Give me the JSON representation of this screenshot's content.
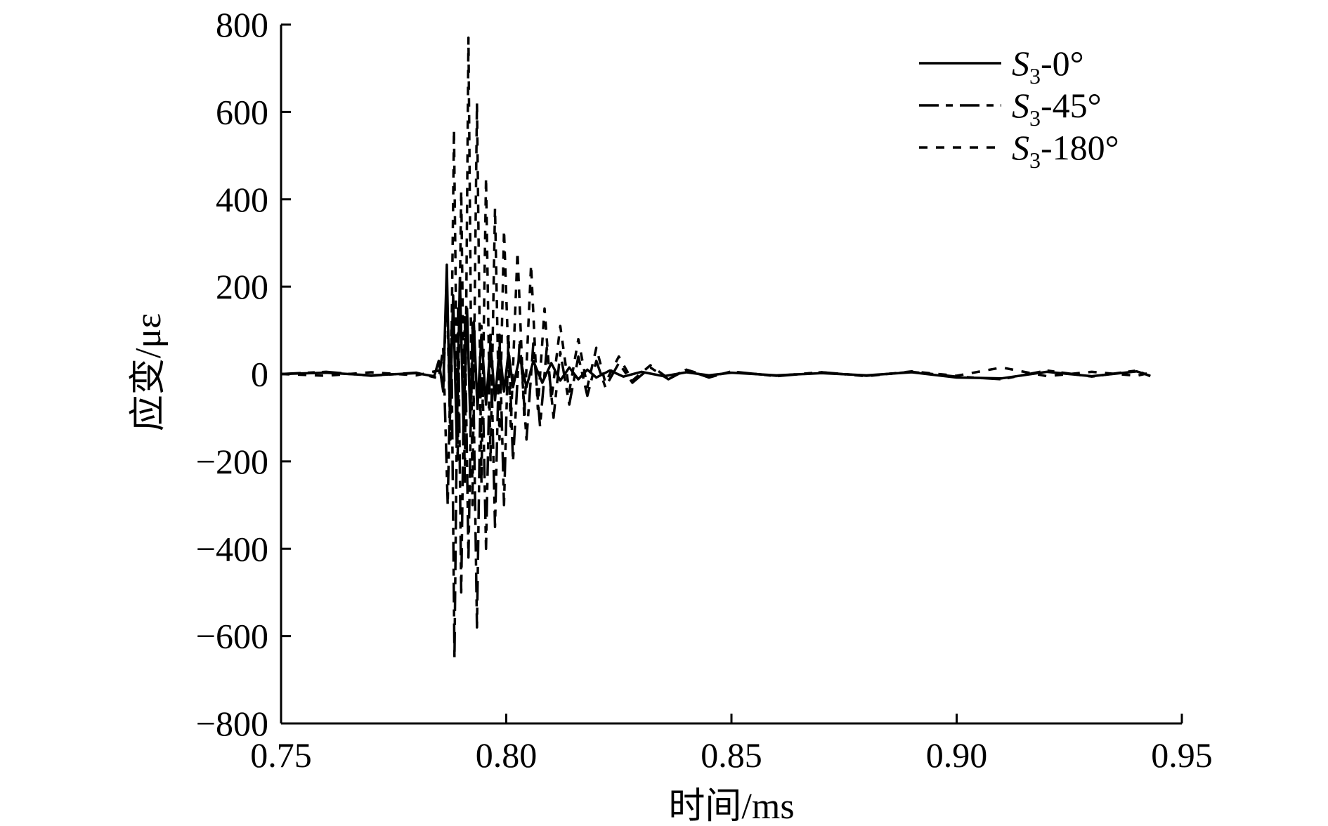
{
  "chart_data": {
    "type": "line",
    "title": "",
    "xlabel": "时间/ms",
    "ylabel": "应变/με",
    "xlim": [
      0.75,
      0.95
    ],
    "ylim": [
      -800,
      800
    ],
    "xticks": [
      0.75,
      0.8,
      0.85,
      0.9,
      0.95
    ],
    "xtick_labels": [
      "0.75",
      "0.80",
      "0.85",
      "0.90",
      "0.95"
    ],
    "yticks": [
      800,
      600,
      400,
      200,
      0,
      -200,
      -400,
      -600,
      -800
    ],
    "ytick_labels": [
      "800",
      "600",
      "400",
      "200",
      "0",
      "−200",
      "−400",
      "−600",
      "−800"
    ],
    "grid": false,
    "legend_position": "top-right",
    "series": [
      {
        "name": "S3-0°",
        "name_main": "S",
        "name_sub": "3",
        "name_suffix": "-0°",
        "dash": "solid",
        "x": [
          0.75,
          0.76,
          0.77,
          0.78,
          0.784,
          0.785,
          0.786,
          0.7868,
          0.7875,
          0.7882,
          0.789,
          0.7897,
          0.7905,
          0.7913,
          0.792,
          0.7928,
          0.7936,
          0.7945,
          0.7955,
          0.7965,
          0.7975,
          0.7985,
          0.7995,
          0.8005,
          0.8015,
          0.803,
          0.8045,
          0.806,
          0.808,
          0.81,
          0.812,
          0.814,
          0.816,
          0.818,
          0.82,
          0.823,
          0.826,
          0.83,
          0.835,
          0.84,
          0.845,
          0.85,
          0.86,
          0.87,
          0.88,
          0.89,
          0.9,
          0.91,
          0.92,
          0.93,
          0.94,
          0.943
        ],
        "values": [
          0,
          3,
          -3,
          2,
          -5,
          30,
          -40,
          250,
          -100,
          180,
          -150,
          220,
          -120,
          150,
          -100,
          120,
          -80,
          90,
          -70,
          70,
          -60,
          60,
          -40,
          50,
          -30,
          40,
          -30,
          30,
          -20,
          25,
          -15,
          15,
          -12,
          10,
          -8,
          8,
          -6,
          5,
          -5,
          4,
          -3,
          3,
          -3,
          2,
          -3,
          4,
          -8,
          -10,
          5,
          -5,
          6,
          -4
        ]
      },
      {
        "name": "S3-45°",
        "name_main": "S",
        "name_sub": "3",
        "name_suffix": "-45°",
        "dash": "long-dash",
        "x": [
          0.75,
          0.76,
          0.77,
          0.78,
          0.785,
          0.786,
          0.787,
          0.7878,
          0.7885,
          0.7893,
          0.79,
          0.7908,
          0.7916,
          0.7925,
          0.7935,
          0.7945,
          0.7955,
          0.7965,
          0.7975,
          0.7985,
          0.7995,
          0.8005,
          0.8015,
          0.803,
          0.8045,
          0.806,
          0.8075,
          0.809,
          0.8105,
          0.812,
          0.814,
          0.816,
          0.818,
          0.82,
          0.822,
          0.825,
          0.828,
          0.832,
          0.836,
          0.84,
          0.845,
          0.85,
          0.86,
          0.87,
          0.88,
          0.89,
          0.9,
          0.91,
          0.92,
          0.93,
          0.94,
          0.943
        ],
        "values": [
          0,
          5,
          -4,
          3,
          -10,
          60,
          -300,
          100,
          -650,
          150,
          -500,
          130,
          -420,
          120,
          -580,
          110,
          -400,
          100,
          -350,
          90,
          -300,
          90,
          -200,
          80,
          -150,
          70,
          -120,
          60,
          -100,
          50,
          -70,
          40,
          -50,
          30,
          -30,
          25,
          -20,
          15,
          -12,
          10,
          -8,
          6,
          -5,
          4,
          -4,
          5,
          -6,
          -12,
          8,
          -6,
          8,
          -5
        ]
      },
      {
        "name": "S3-180°",
        "name_main": "S",
        "name_sub": "3",
        "name_suffix": "-180°",
        "dash": "short-dash",
        "x": [
          0.75,
          0.76,
          0.77,
          0.78,
          0.785,
          0.786,
          0.7868,
          0.7876,
          0.7884,
          0.7892,
          0.79,
          0.7908,
          0.7916,
          0.7925,
          0.7935,
          0.7945,
          0.7955,
          0.7965,
          0.7975,
          0.7985,
          0.7995,
          0.801,
          0.8025,
          0.804,
          0.8055,
          0.807,
          0.8085,
          0.81,
          0.812,
          0.814,
          0.816,
          0.818,
          0.82,
          0.822,
          0.825,
          0.828,
          0.832,
          0.836,
          0.84,
          0.845,
          0.85,
          0.86,
          0.87,
          0.88,
          0.89,
          0.9,
          0.91,
          0.92,
          0.93,
          0.94,
          0.943
        ],
        "values": [
          0,
          -4,
          4,
          -3,
          8,
          -30,
          200,
          -150,
          560,
          -200,
          420,
          -250,
          770,
          -300,
          620,
          -250,
          450,
          -200,
          380,
          -150,
          330,
          -120,
          280,
          -100,
          250,
          -80,
          150,
          -60,
          110,
          -40,
          80,
          -30,
          60,
          -20,
          40,
          -15,
          20,
          -10,
          10,
          -6,
          5,
          -4,
          4,
          -5,
          6,
          -4,
          15,
          -5,
          5,
          -4,
          3
        ]
      }
    ]
  }
}
